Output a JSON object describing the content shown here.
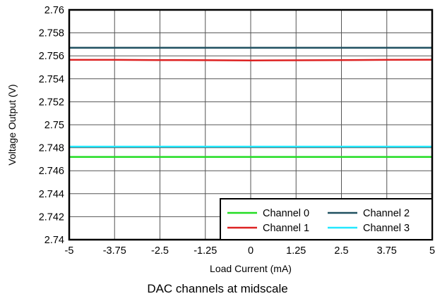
{
  "caption": "DAC channels at midscale",
  "chart_data": {
    "type": "line",
    "title": "",
    "xlabel": "Load Current (mA)",
    "ylabel": "Voltage Output (V)",
    "xlim": [
      -5,
      5
    ],
    "ylim": [
      2.74,
      2.76
    ],
    "x_ticks": [
      "-5",
      "-3.75",
      "-2.5",
      "-1.25",
      "0",
      "1.25",
      "2.5",
      "3.75",
      "5"
    ],
    "y_ticks": [
      "2.74",
      "2.742",
      "2.744",
      "2.746",
      "2.748",
      "2.75",
      "2.752",
      "2.754",
      "2.756",
      "2.758",
      "2.76"
    ],
    "grid": true,
    "legend_position": "bottom-right",
    "x": [
      -5,
      -3.75,
      -2.5,
      -1.25,
      0,
      1.25,
      2.5,
      3.75,
      5
    ],
    "series": [
      {
        "name": "Channel 0",
        "color": "#22dd22",
        "values": [
          2.7472,
          2.7472,
          2.7472,
          2.7472,
          2.7472,
          2.7472,
          2.7472,
          2.7472,
          2.7472
        ]
      },
      {
        "name": "Channel 1",
        "color": "#dd2222",
        "values": [
          2.75565,
          2.75565,
          2.75563,
          2.75562,
          2.7556,
          2.75561,
          2.75563,
          2.75565,
          2.75566
        ]
      },
      {
        "name": "Channel 2",
        "color": "#1f5060",
        "values": [
          2.7567,
          2.7567,
          2.7567,
          2.7567,
          2.7567,
          2.7567,
          2.7567,
          2.7567,
          2.7567
        ]
      },
      {
        "name": "Channel 3",
        "color": "#22e8ff",
        "values": [
          2.7481,
          2.7481,
          2.7481,
          2.7481,
          2.7481,
          2.7481,
          2.7481,
          2.7481,
          2.7481
        ]
      }
    ]
  }
}
